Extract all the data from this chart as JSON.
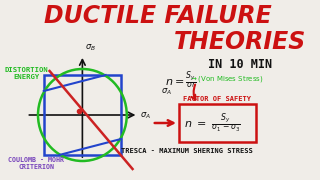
{
  "bg_color": "#f0ede8",
  "title_line1": "DUCTILE FAILURE",
  "title_line2": "THEORIES",
  "title_color": "#cc1111",
  "title_shadow_color": "#881111",
  "in10min_text": "IN 10 MIN",
  "in10min_color": "#111111",
  "distortion_energy_text": "DISTORTION\nENERGY",
  "distortion_energy_color": "#22bb22",
  "coulomb_mohr_text": "COULOMB - MOHR\nCRITERION",
  "coulomb_mohr_color": "#7744bb",
  "factor_of_safety_text": "FACTOR OF SAFETY",
  "tresca_text": "TRESCA - MAXIMUM SHERING STRESS",
  "box_color": "#cc1111",
  "green_text_color": "#22bb22",
  "axis_color": "#111111",
  "square_color": "#2244cc",
  "ellipse_color": "#22bb22",
  "red_line_color": "#cc2222",
  "blue_diag_color": "#2244cc",
  "formula_black": "#111111",
  "ox": 82,
  "oy": 115,
  "sq": 40
}
